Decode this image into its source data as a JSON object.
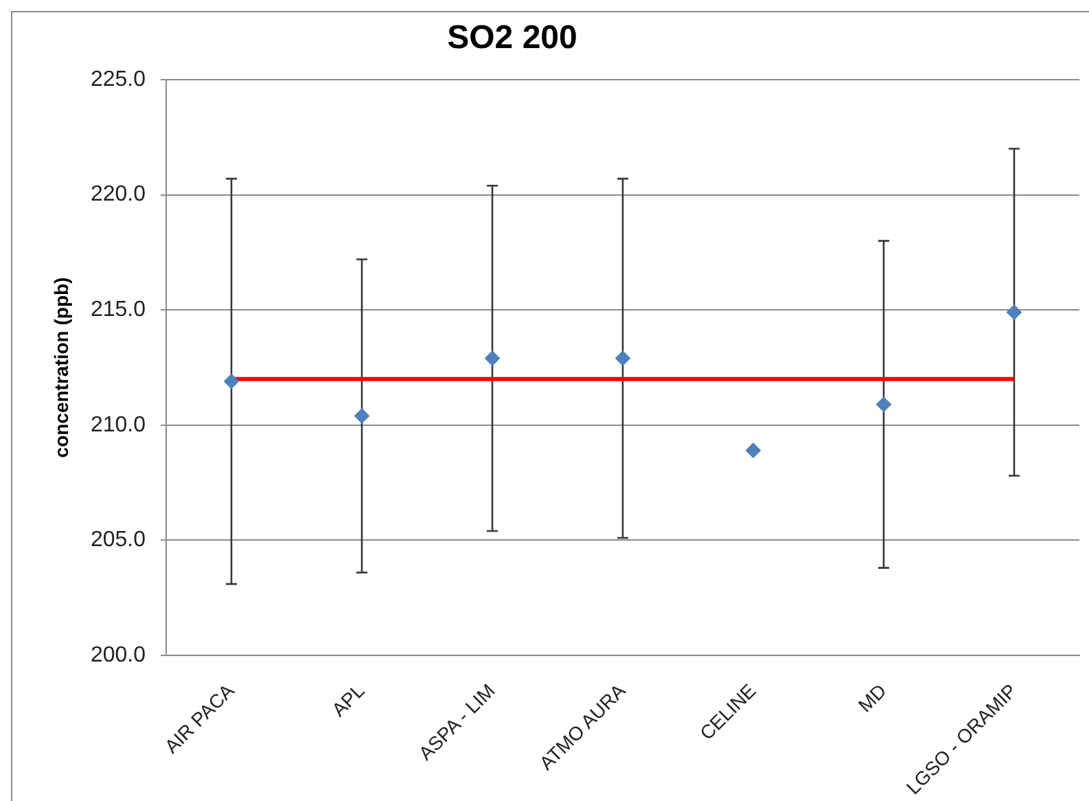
{
  "chart_data": {
    "type": "scatter",
    "title": "SO2 200",
    "ylabel": "concentration (ppb)",
    "categories": [
      "AIR PACA",
      "APL",
      "ASPA - LIM",
      "ATMO AURA",
      "CELINE",
      "MD",
      "LGSO - ORAMIP"
    ],
    "series": [
      {
        "color": "#4f81bd",
        "values": [
          211.9,
          210.4,
          212.9,
          212.9,
          208.9,
          210.9,
          214.9
        ],
        "errors": [
          8.8,
          6.8,
          7.5,
          7.8,
          null,
          7.1,
          7.1
        ]
      },
      {
        "type": "line",
        "color": "#ff0000",
        "marker": "none",
        "values": [
          212,
          212,
          212,
          212,
          212,
          212,
          212
        ]
      }
    ],
    "ylim": [
      200,
      225
    ],
    "yticks": [
      {
        "value": 200,
        "label": "200.0"
      },
      {
        "value": 205,
        "label": "205.0"
      },
      {
        "value": 210,
        "label": "210.0"
      },
      {
        "value": 215,
        "label": "215.0"
      },
      {
        "value": 220,
        "label": "220.0"
      },
      {
        "value": 225,
        "label": "225.0"
      }
    ],
    "grid": "y",
    "marker": "diamond"
  }
}
